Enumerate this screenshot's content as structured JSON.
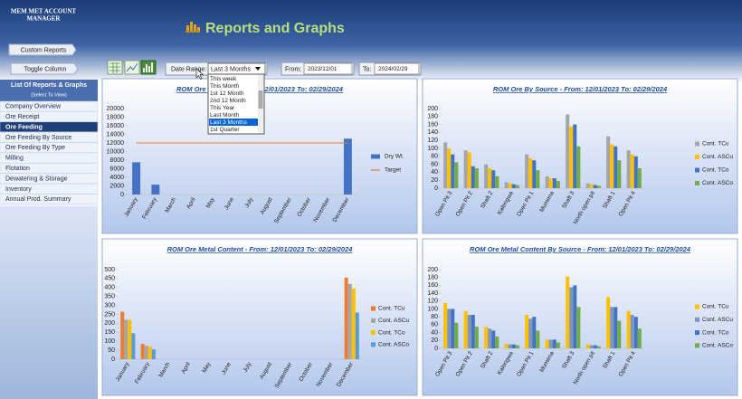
{
  "header": {
    "app_name": [
      "MEM MET ACCOUNT",
      "MANAGER"
    ],
    "title": "Reports and Graphs"
  },
  "buttons": [
    "Custom Reports",
    "Toggle Column"
  ],
  "sidebar": {
    "heading": "List Of Reports & Graphs",
    "subheading": "(Select To View)",
    "items": [
      "Company Overview",
      "Ore Receipt",
      "Ore Feeding",
      "Ore Feeding By Source",
      "Ore Feeding By Type",
      "Milling",
      "Flotation",
      "Dewatering & Storage",
      "Inventory",
      "Annual Prod. Summary"
    ],
    "selected_index": 2
  },
  "toolbar": {
    "date_range_label": "Date Range:",
    "date_range_value": "Last 3 Months",
    "date_range_options": [
      "This week",
      "This Month",
      "1st 12 Month",
      "2nd 12 Month",
      "This Year",
      "Last Month",
      "Last 3 Months",
      "1st Quarter"
    ],
    "from_label": "From:",
    "from_date": "2023/12/01",
    "to_label": "To:",
    "to_date": "2024/02/29"
  },
  "chart_data": [
    {
      "type": "bar",
      "title": "ROM Ore Feeding - From: 12/01/2023 To: 02/29/2024",
      "categories": [
        "January",
        "February",
        "March",
        "April",
        "May",
        "June",
        "July",
        "August",
        "September",
        "October",
        "November",
        "December"
      ],
      "series": [
        {
          "name": "Dry Wt.",
          "color": "#4472c4",
          "values": [
            7500,
            2300,
            0,
            0,
            0,
            0,
            0,
            0,
            0,
            0,
            0,
            13000
          ]
        },
        {
          "name": "Target",
          "type": "line",
          "color": "#ed7d31",
          "values": [
            12000,
            12000,
            12000,
            12000,
            12000,
            12000,
            12000,
            12000,
            12000,
            12000,
            12000,
            12000
          ]
        }
      ],
      "ylim": [
        0,
        20000
      ],
      "yticks": [
        0,
        2000,
        4000,
        6000,
        8000,
        10000,
        12000,
        14000,
        16000,
        18000,
        20000
      ],
      "grid": false,
      "legend": "right"
    },
    {
      "type": "bar",
      "title": "ROM Ore By Source  - From: 12/01/2023 To: 02/29/2024",
      "categories": [
        "Open Pit 3",
        "Open Pit 2",
        "Shaft 2",
        "Kalengwa",
        "Open Pit 1",
        "Mumena",
        "Shaft 3",
        "North open pit",
        "Shaft 1",
        "Open Pit 4"
      ],
      "series": [
        {
          "name": "Cont. TCu",
          "color": "#a5a5a5",
          "values": [
            115,
            95,
            60,
            15,
            85,
            30,
            185,
            12,
            130,
            95
          ]
        },
        {
          "name": "Cont. ASCu",
          "color": "#ffc000",
          "values": [
            100,
            90,
            50,
            12,
            75,
            25,
            155,
            10,
            110,
            85
          ]
        },
        {
          "name": "Cont. TCo",
          "color": "#4472c4",
          "values": [
            85,
            55,
            45,
            10,
            70,
            25,
            160,
            8,
            105,
            80
          ]
        },
        {
          "name": "Cont. ASCo",
          "color": "#70ad47",
          "values": [
            65,
            50,
            30,
            8,
            45,
            18,
            105,
            6,
            70,
            50
          ]
        }
      ],
      "ylim": [
        0,
        200
      ],
      "yticks": [
        0,
        20,
        40,
        60,
        80,
        100,
        120,
        140,
        160,
        180,
        200
      ],
      "grid": false,
      "legend": "right"
    },
    {
      "type": "bar",
      "title": "ROM Ore Metal Content - From: 12/01/2023 To: 02/29/2024",
      "categories": [
        "January",
        "February",
        "March",
        "April",
        "May",
        "June",
        "July",
        "August",
        "September",
        "October",
        "November",
        "December"
      ],
      "series": [
        {
          "name": "Cont. TCu",
          "color": "#ed7d31",
          "values": [
            265,
            85,
            0,
            0,
            0,
            0,
            0,
            0,
            0,
            0,
            0,
            455
          ]
        },
        {
          "name": "Cont. ASCu",
          "color": "#a5a5a5",
          "values": [
            220,
            75,
            0,
            0,
            0,
            0,
            0,
            0,
            0,
            0,
            0,
            420
          ]
        },
        {
          "name": "Cont. TCo",
          "color": "#ffc000",
          "values": [
            220,
            70,
            0,
            0,
            0,
            0,
            0,
            0,
            0,
            0,
            0,
            395
          ]
        },
        {
          "name": "Cont. ASCo",
          "color": "#5b9bd5",
          "values": [
            145,
            55,
            0,
            0,
            0,
            0,
            0,
            0,
            0,
            0,
            0,
            260
          ]
        }
      ],
      "ylim": [
        0,
        500
      ],
      "yticks": [
        0,
        50,
        100,
        150,
        200,
        250,
        300,
        350,
        400,
        450,
        500
      ],
      "grid": false,
      "legend": "right"
    },
    {
      "type": "bar",
      "title": "ROM Ore Metal Content By Source  - From: 12/01/2023 To: 02/29/2024",
      "categories": [
        "Open Pit 3",
        "Open Pit 2",
        "Shaft 2",
        "Kalengwa",
        "Open Pit 1",
        "Mumena",
        "Shaft 3",
        "North open pit",
        "Shaft 1",
        "Open Pit 4"
      ],
      "series": [
        {
          "name": "Cont. TCu",
          "color": "#ffc000",
          "values": [
            115,
            95,
            55,
            12,
            85,
            22,
            182,
            10,
            130,
            95
          ]
        },
        {
          "name": "Cont. ASCu",
          "color": "#7f96b8",
          "values": [
            100,
            85,
            50,
            10,
            75,
            22,
            155,
            8,
            105,
            85
          ]
        },
        {
          "name": "Cont. TCo",
          "color": "#4472c4",
          "values": [
            100,
            85,
            45,
            10,
            80,
            22,
            160,
            8,
            105,
            80
          ]
        },
        {
          "name": "Cont. ASCo",
          "color": "#70ad47",
          "values": [
            65,
            55,
            30,
            8,
            45,
            15,
            105,
            5,
            70,
            50
          ]
        }
      ],
      "ylim": [
        0,
        200
      ],
      "yticks": [
        0,
        20,
        40,
        60,
        80,
        100,
        120,
        140,
        160,
        180,
        200
      ],
      "grid": false,
      "legend": "right"
    }
  ]
}
